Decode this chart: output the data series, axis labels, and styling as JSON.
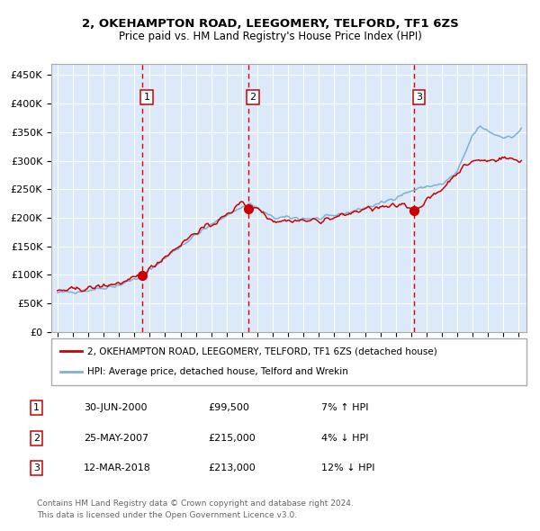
{
  "title1": "2, OKEHAMPTON ROAD, LEEGOMERY, TELFORD, TF1 6ZS",
  "title2": "Price paid vs. HM Land Registry's House Price Index (HPI)",
  "legend_red": "2, OKEHAMPTON ROAD, LEEGOMERY, TELFORD, TF1 6ZS (detached house)",
  "legend_blue": "HPI: Average price, detached house, Telford and Wrekin",
  "footer1": "Contains HM Land Registry data © Crown copyright and database right 2024.",
  "footer2": "This data is licensed under the Open Government Licence v3.0.",
  "sales": [
    {
      "num": 1,
      "date": "30-JUN-2000",
      "price": 99500,
      "pct": "7%",
      "dir": "↑",
      "year": 2000.5
    },
    {
      "num": 2,
      "date": "25-MAY-2007",
      "price": 215000,
      "pct": "4%",
      "dir": "↓",
      "year": 2007.4
    },
    {
      "num": 3,
      "date": "12-MAR-2018",
      "price": 213000,
      "pct": "12%",
      "dir": "↓",
      "year": 2018.2
    }
  ],
  "plot_bg": "#dce9f8",
  "red_color": "#cc0000",
  "blue_color": "#7eb0d4",
  "grid_color": "#ffffff",
  "vline_color": "#dd0000",
  "ylim": [
    0,
    470000
  ],
  "yticks": [
    0,
    50000,
    100000,
    150000,
    200000,
    250000,
    300000,
    350000,
    400000,
    450000
  ],
  "xlim_start": 1994.6,
  "xlim_end": 2025.5
}
